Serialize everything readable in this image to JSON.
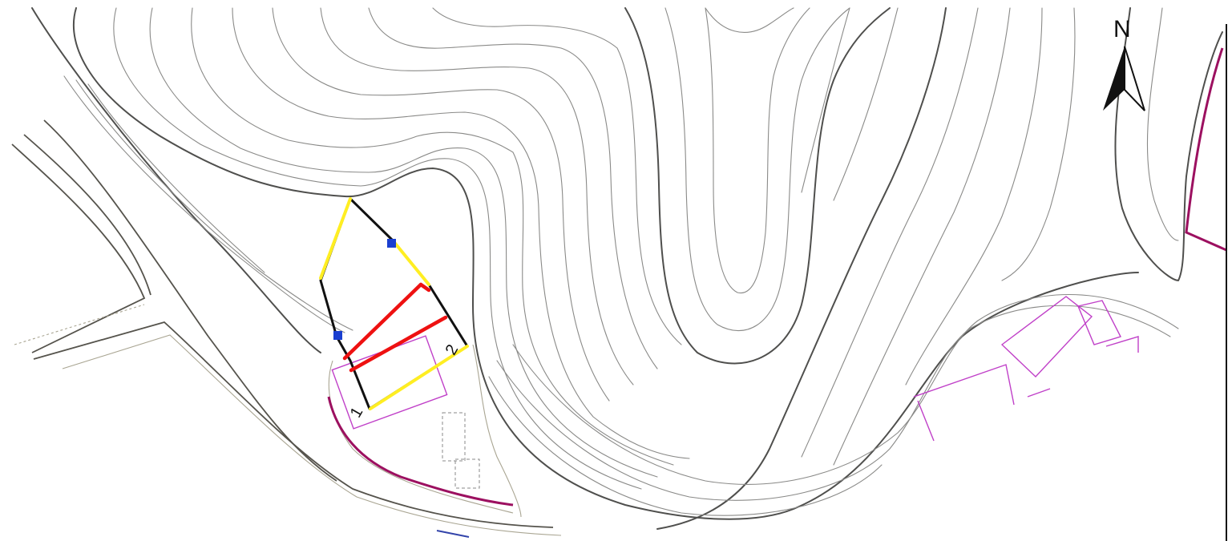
{
  "map": {
    "north_label": "N",
    "section_points": [
      {
        "id": "point-1",
        "label": "1"
      },
      {
        "id": "point-2",
        "label": "2"
      }
    ],
    "colors": {
      "contour": "#8a8a88",
      "index_contour": "#4f4f4d",
      "building": "#c040c8",
      "wall": "#9c1060",
      "section_outline": "#111111",
      "section_yellow": "#ffee22",
      "section_red": "#ee1111",
      "marker": "#1a3fd0"
    }
  }
}
